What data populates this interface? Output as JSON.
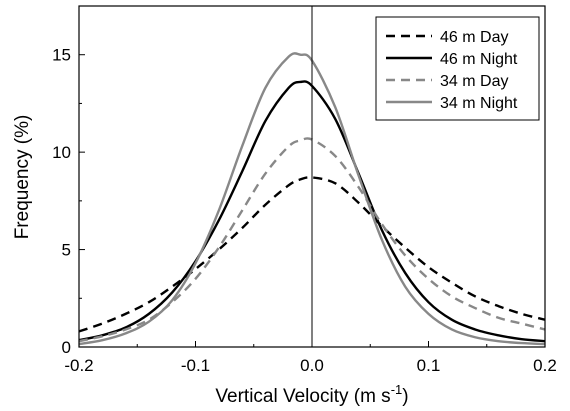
{
  "chart_data": {
    "type": "line",
    "xlabel": "Vertical Velocity (m s",
    "xlabel_sup": "-1",
    "xlabel_close": ")",
    "ylabel": "Frequency (%)",
    "xlim": [
      -0.2,
      0.2
    ],
    "ylim": [
      0,
      17.5
    ],
    "xticks": [
      -0.2,
      -0.1,
      0.0,
      0.1,
      0.2
    ],
    "xtick_labels": [
      "-0.2",
      "-0.1",
      "0.0",
      "0.1",
      "0.2"
    ],
    "yticks": [
      0,
      5,
      10,
      15
    ],
    "ytick_labels": [
      "0",
      "5",
      "10",
      "15"
    ],
    "reference_line_x": 0.0,
    "grid": false,
    "legend_position": "top-right",
    "x": [
      -0.2,
      -0.18,
      -0.16,
      -0.14,
      -0.12,
      -0.1,
      -0.08,
      -0.06,
      -0.04,
      -0.02,
      -0.01,
      0.0,
      0.02,
      0.04,
      0.06,
      0.08,
      0.1,
      0.12,
      0.14,
      0.16,
      0.18,
      0.2
    ],
    "series": [
      {
        "name": "46 m Day",
        "color": "#000000",
        "dash": "dashed",
        "values": [
          0.8,
          1.2,
          1.7,
          2.3,
          3.1,
          4.0,
          5.0,
          6.1,
          7.3,
          8.3,
          8.6,
          8.7,
          8.4,
          7.4,
          6.2,
          5.1,
          4.1,
          3.3,
          2.6,
          2.1,
          1.7,
          1.4
        ]
      },
      {
        "name": "46 m Night",
        "color": "#000000",
        "dash": "solid",
        "values": [
          0.35,
          0.6,
          1.0,
          1.7,
          2.8,
          4.4,
          6.5,
          9.0,
          11.6,
          13.3,
          13.6,
          13.4,
          11.7,
          8.9,
          6.0,
          3.8,
          2.3,
          1.4,
          0.9,
          0.6,
          0.4,
          0.3
        ]
      },
      {
        "name": "34 m Day",
        "color": "#888888",
        "dash": "dashed",
        "values": [
          0.3,
          0.55,
          0.9,
          1.4,
          2.3,
          3.5,
          5.1,
          7.0,
          8.9,
          10.3,
          10.6,
          10.65,
          9.8,
          8.2,
          6.3,
          4.7,
          3.5,
          2.6,
          2.0,
          1.5,
          1.2,
          0.9
        ]
      },
      {
        "name": "34 m Night",
        "color": "#888888",
        "dash": "solid",
        "values": [
          0.15,
          0.35,
          0.7,
          1.3,
          2.4,
          4.3,
          7.0,
          10.3,
          13.3,
          14.9,
          15.0,
          14.7,
          12.3,
          8.8,
          5.5,
          3.1,
          1.7,
          0.9,
          0.5,
          0.3,
          0.2,
          0.15
        ]
      }
    ]
  }
}
